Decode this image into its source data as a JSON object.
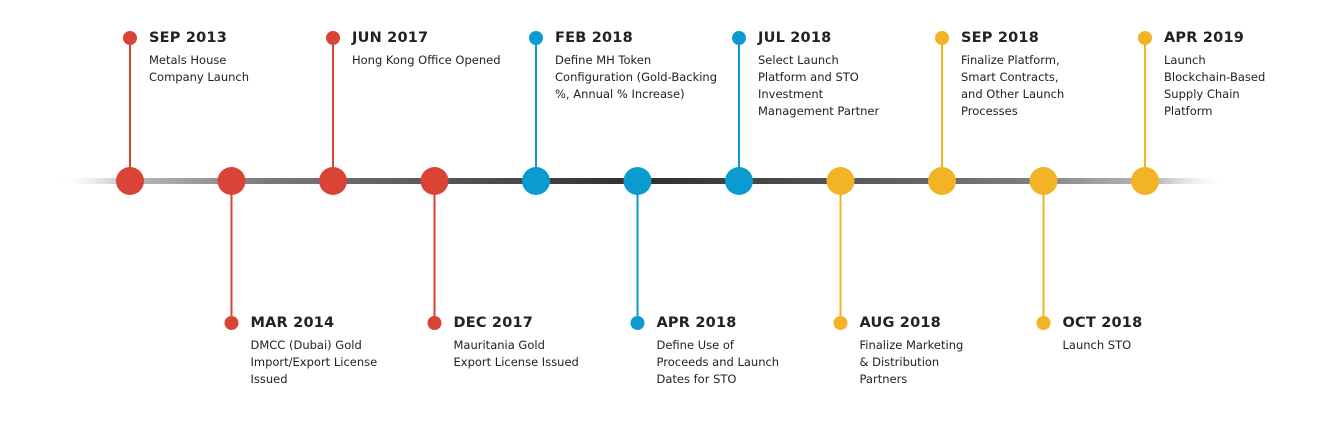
{
  "colors": {
    "red": "#D94436",
    "blue": "#0B9BD0",
    "yellow": "#F2B324",
    "axis": "#3a3a3a"
  },
  "milestones": [
    {
      "date": "SEP 2013",
      "lines": [
        "Metals House",
        "Company Launch"
      ],
      "position": "top",
      "color": "red"
    },
    {
      "date": "MAR 2014",
      "lines": [
        "DMCC (Dubai) Gold",
        "Import/Export License",
        "Issued"
      ],
      "position": "bottom",
      "color": "red"
    },
    {
      "date": "JUN 2017",
      "lines": [
        "Hong Kong Office Opened"
      ],
      "position": "top",
      "color": "red"
    },
    {
      "date": "DEC 2017",
      "lines": [
        "Mauritania Gold",
        "Export License Issued"
      ],
      "position": "bottom",
      "color": "red"
    },
    {
      "date": "FEB 2018",
      "lines": [
        "Define MH Token",
        "Configuration (Gold-Backing",
        "%, Annual % Increase)"
      ],
      "position": "top",
      "color": "blue"
    },
    {
      "date": "APR 2018",
      "lines": [
        "Define Use of",
        "Proceeds and Launch",
        "Dates for STO"
      ],
      "position": "bottom",
      "color": "blue"
    },
    {
      "date": "JUL 2018",
      "lines": [
        "Select Launch",
        "Platform and STO",
        "Investment",
        "Management Partner"
      ],
      "position": "top",
      "color": "blue"
    },
    {
      "date": "AUG 2018",
      "lines": [
        "Finalize Marketing",
        "& Distribution",
        "Partners"
      ],
      "position": "bottom",
      "color": "yellow"
    },
    {
      "date": "SEP 2018",
      "lines": [
        "Finalize Platform,",
        "Smart Contracts,",
        "and Other Launch",
        "Processes"
      ],
      "position": "top",
      "color": "yellow"
    },
    {
      "date": "OCT 2018",
      "lines": [
        "Launch STO"
      ],
      "position": "bottom",
      "color": "yellow"
    },
    {
      "date": "APR 2019",
      "lines": [
        "Launch",
        "Blockchain-Based",
        "Supply Chain",
        "Platform"
      ],
      "position": "top",
      "color": "yellow"
    }
  ]
}
